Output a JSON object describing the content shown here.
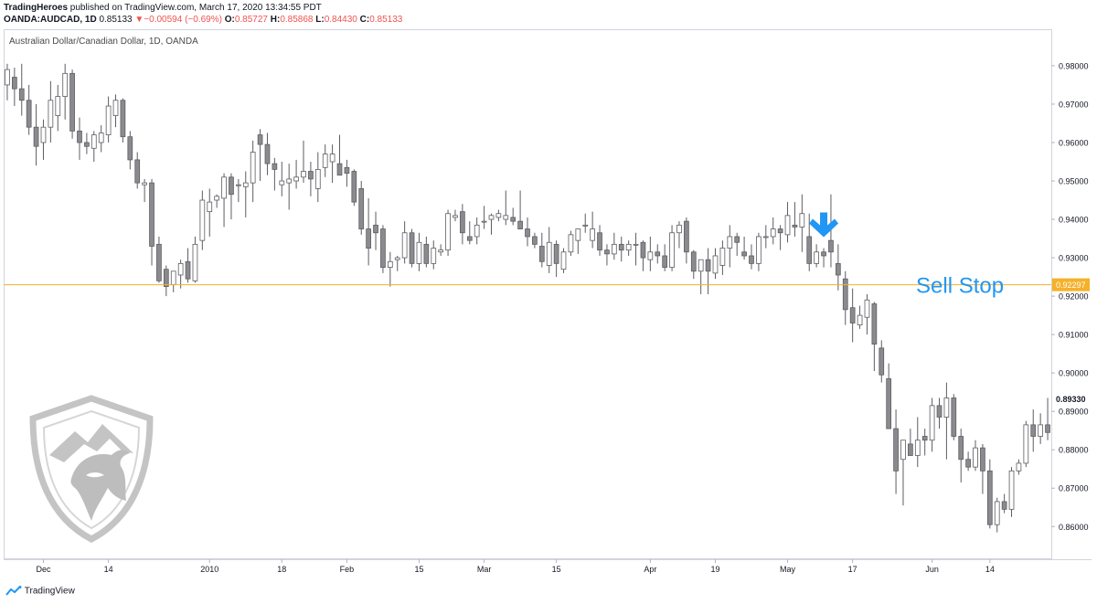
{
  "header": {
    "publisher": "TradingHeroes",
    "published_text": " published on TradingView.com, March 17, 2020 13:34:55 PDT",
    "symbol": "OANDA:AUDCAD, 1D",
    "last": "0.85133",
    "change_arrow": "▼",
    "change": "−0.00594 (−0.69%)",
    "o_label": "O:",
    "o_value": "0.85727",
    "h_label": "H:",
    "h_value": "0.85868",
    "l_label": "L:",
    "l_value": "0.84430",
    "c_label": "C:",
    "c_value": "0.85133"
  },
  "pane_title": "Australian Dollar/Canadian Dollar, 1D, OANDA",
  "footer": {
    "brand": "TradingView"
  },
  "colors": {
    "candle": "#8b8b8f",
    "candle_border": "#5d5d62",
    "level_line": "#f5b12a",
    "annotation": "#2196f3",
    "grid": "#e6e9ee",
    "axis_text": "#131722",
    "logo": "#bdbdbd"
  },
  "icons": {
    "annotation_arrow": "arrow-down-icon",
    "logo": "shield-bull-icon",
    "brand": "tradingview-icon"
  },
  "chart_data": {
    "type": "candlestick",
    "title": "Australian Dollar/Canadian Dollar, 1D, OANDA",
    "y_axis": {
      "position": "right",
      "range": [
        0.8515,
        0.9895
      ],
      "ticks": [
        "0.98000",
        "0.97000",
        "0.96000",
        "0.95000",
        "0.94000",
        "0.93000",
        "0.92000",
        "0.91000",
        "0.90000",
        "0.89000",
        "0.88000",
        "0.87000",
        "0.86000"
      ]
    },
    "x_axis": {
      "ticks": [
        "Dec",
        "14",
        "2010",
        "18",
        "Feb",
        "15",
        "Mar",
        "15",
        "Apr",
        "19",
        "May",
        "17",
        "Jun",
        "14"
      ],
      "tick_index": [
        5,
        14,
        28,
        38,
        47,
        57,
        66,
        76,
        89,
        98,
        108,
        117,
        128,
        136
      ]
    },
    "price_labels": [
      {
        "value": 0.92297,
        "text": "0.92297",
        "style": "level"
      },
      {
        "value": 0.8933,
        "text": "0.89330",
        "style": "plain"
      }
    ],
    "horizontal_line": {
      "value": 0.92297
    },
    "annotations": [
      {
        "text": "Sell Stop",
        "value": 0.92297
      },
      {
        "icon": "arrow-down",
        "index": 113,
        "value": 0.9375
      }
    ],
    "grid": false,
    "ohlc": [
      [
        0.975,
        0.9805,
        0.971,
        0.979
      ],
      [
        0.977,
        0.9795,
        0.9695,
        0.974
      ],
      [
        0.974,
        0.9805,
        0.967,
        0.971
      ],
      [
        0.971,
        0.975,
        0.962,
        0.964
      ],
      [
        0.964,
        0.97,
        0.954,
        0.959
      ],
      [
        0.96,
        0.966,
        0.9555,
        0.964
      ],
      [
        0.964,
        0.976,
        0.96,
        0.971
      ],
      [
        0.967,
        0.975,
        0.963,
        0.972
      ],
      [
        0.972,
        0.9805,
        0.966,
        0.978
      ],
      [
        0.978,
        0.979,
        0.961,
        0.963
      ],
      [
        0.963,
        0.9665,
        0.9555,
        0.96
      ],
      [
        0.96,
        0.9625,
        0.957,
        0.959
      ],
      [
        0.9585,
        0.963,
        0.955,
        0.962
      ],
      [
        0.96,
        0.9645,
        0.9575,
        0.9625
      ],
      [
        0.962,
        0.972,
        0.96,
        0.9695
      ],
      [
        0.967,
        0.9725,
        0.964,
        0.971
      ],
      [
        0.971,
        0.9715,
        0.96,
        0.9615
      ],
      [
        0.9615,
        0.963,
        0.953,
        0.9555
      ],
      [
        0.9555,
        0.9575,
        0.948,
        0.9495
      ],
      [
        0.949,
        0.9505,
        0.9445,
        0.9495
      ],
      [
        0.9495,
        0.9505,
        0.928,
        0.933
      ],
      [
        0.9335,
        0.9355,
        0.9235,
        0.924
      ],
      [
        0.927,
        0.928,
        0.92,
        0.9225
      ],
      [
        0.923,
        0.9265,
        0.921,
        0.9265
      ],
      [
        0.9255,
        0.9295,
        0.922,
        0.9285
      ],
      [
        0.929,
        0.9325,
        0.9235,
        0.9245
      ],
      [
        0.924,
        0.9355,
        0.9235,
        0.9335
      ],
      [
        0.9345,
        0.9475,
        0.932,
        0.945
      ],
      [
        0.942,
        0.948,
        0.9355,
        0.9445
      ],
      [
        0.945,
        0.9465,
        0.943,
        0.946
      ],
      [
        0.9455,
        0.952,
        0.938,
        0.951
      ],
      [
        0.951,
        0.952,
        0.94,
        0.9465
      ],
      [
        0.949,
        0.9505,
        0.9445,
        0.949
      ],
      [
        0.9485,
        0.9525,
        0.9405,
        0.9495
      ],
      [
        0.9495,
        0.9605,
        0.9445,
        0.9575
      ],
      [
        0.962,
        0.9635,
        0.95,
        0.9595
      ],
      [
        0.9595,
        0.9625,
        0.9515,
        0.9545
      ],
      [
        0.9545,
        0.956,
        0.9475,
        0.953
      ],
      [
        0.949,
        0.955,
        0.946,
        0.95
      ],
      [
        0.9495,
        0.9545,
        0.9425,
        0.9505
      ],
      [
        0.95,
        0.9555,
        0.948,
        0.951
      ],
      [
        0.951,
        0.9605,
        0.9495,
        0.9525
      ],
      [
        0.9525,
        0.955,
        0.946,
        0.9505
      ],
      [
        0.948,
        0.9575,
        0.9445,
        0.953
      ],
      [
        0.9535,
        0.9595,
        0.951,
        0.957
      ],
      [
        0.955,
        0.9595,
        0.9495,
        0.957
      ],
      [
        0.9545,
        0.962,
        0.952,
        0.9515
      ],
      [
        0.9535,
        0.9555,
        0.9485,
        0.952
      ],
      [
        0.9525,
        0.953,
        0.9435,
        0.9445
      ],
      [
        0.948,
        0.95,
        0.936,
        0.9375
      ],
      [
        0.9375,
        0.9455,
        0.928,
        0.9325
      ],
      [
        0.9385,
        0.942,
        0.932,
        0.9365
      ],
      [
        0.9375,
        0.9385,
        0.926,
        0.9275
      ],
      [
        0.9275,
        0.9315,
        0.9225,
        0.929
      ],
      [
        0.9295,
        0.9305,
        0.9265,
        0.93
      ],
      [
        0.93,
        0.9395,
        0.9285,
        0.9365
      ],
      [
        0.9365,
        0.9375,
        0.9275,
        0.9285
      ],
      [
        0.9285,
        0.9365,
        0.9265,
        0.934
      ],
      [
        0.9335,
        0.9355,
        0.9275,
        0.9285
      ],
      [
        0.9285,
        0.9345,
        0.927,
        0.9325
      ],
      [
        0.9315,
        0.9335,
        0.9305,
        0.932
      ],
      [
        0.932,
        0.9425,
        0.9305,
        0.9415
      ],
      [
        0.9405,
        0.9425,
        0.9395,
        0.941
      ],
      [
        0.942,
        0.944,
        0.9335,
        0.9365
      ],
      [
        0.9355,
        0.9395,
        0.9335,
        0.9345
      ],
      [
        0.9355,
        0.9405,
        0.9335,
        0.9385
      ],
      [
        0.9395,
        0.9435,
        0.9375,
        0.9395
      ],
      [
        0.94,
        0.9415,
        0.936,
        0.941
      ],
      [
        0.9405,
        0.9425,
        0.9395,
        0.9415
      ],
      [
        0.94,
        0.9475,
        0.9385,
        0.941
      ],
      [
        0.9405,
        0.943,
        0.9385,
        0.9395
      ],
      [
        0.9395,
        0.9475,
        0.9375,
        0.9375
      ],
      [
        0.9375,
        0.9405,
        0.933,
        0.9355
      ],
      [
        0.9355,
        0.9365,
        0.9325,
        0.9335
      ],
      [
        0.933,
        0.9365,
        0.9275,
        0.929
      ],
      [
        0.928,
        0.938,
        0.926,
        0.934
      ],
      [
        0.9335,
        0.9345,
        0.925,
        0.9285
      ],
      [
        0.927,
        0.9325,
        0.926,
        0.9315
      ],
      [
        0.9315,
        0.937,
        0.9305,
        0.936
      ],
      [
        0.9345,
        0.9375,
        0.931,
        0.9375
      ],
      [
        0.9385,
        0.9415,
        0.9365,
        0.9385
      ],
      [
        0.9345,
        0.942,
        0.9325,
        0.9375
      ],
      [
        0.9365,
        0.9385,
        0.9305,
        0.932
      ],
      [
        0.932,
        0.9335,
        0.928,
        0.931
      ],
      [
        0.931,
        0.9365,
        0.9295,
        0.9335
      ],
      [
        0.9335,
        0.9355,
        0.929,
        0.932
      ],
      [
        0.932,
        0.9345,
        0.9305,
        0.9335
      ],
      [
        0.9335,
        0.9365,
        0.928,
        0.9335
      ],
      [
        0.934,
        0.9345,
        0.9265,
        0.93
      ],
      [
        0.9295,
        0.9355,
        0.9265,
        0.9315
      ],
      [
        0.9315,
        0.9335,
        0.9285,
        0.9305
      ],
      [
        0.9305,
        0.9335,
        0.9265,
        0.9275
      ],
      [
        0.9275,
        0.9385,
        0.9265,
        0.9365
      ],
      [
        0.9365,
        0.9395,
        0.9325,
        0.9385
      ],
      [
        0.9395,
        0.9405,
        0.9285,
        0.9315
      ],
      [
        0.9315,
        0.932,
        0.9245,
        0.9265
      ],
      [
        0.9265,
        0.9295,
        0.9205,
        0.9295
      ],
      [
        0.9295,
        0.9325,
        0.9205,
        0.9265
      ],
      [
        0.926,
        0.9325,
        0.9245,
        0.9305
      ],
      [
        0.928,
        0.9345,
        0.9255,
        0.9325
      ],
      [
        0.9325,
        0.9385,
        0.9275,
        0.9355
      ],
      [
        0.9355,
        0.9365,
        0.9305,
        0.934
      ],
      [
        0.9315,
        0.9355,
        0.9295,
        0.9305
      ],
      [
        0.9305,
        0.9335,
        0.927,
        0.9285
      ],
      [
        0.9285,
        0.9365,
        0.9265,
        0.9355
      ],
      [
        0.9355,
        0.9385,
        0.9325,
        0.9355
      ],
      [
        0.9355,
        0.9405,
        0.9335,
        0.9375
      ],
      [
        0.9375,
        0.9385,
        0.932,
        0.9365
      ],
      [
        0.936,
        0.9445,
        0.934,
        0.941
      ],
      [
        0.9385,
        0.9445,
        0.9355,
        0.938
      ],
      [
        0.938,
        0.9465,
        0.9315,
        0.9415
      ],
      [
        0.9355,
        0.9415,
        0.9265,
        0.9285
      ],
      [
        0.9285,
        0.9335,
        0.9275,
        0.9315
      ],
      [
        0.9315,
        0.9325,
        0.9275,
        0.9305
      ],
      [
        0.9345,
        0.9465,
        0.9275,
        0.9315
      ],
      [
        0.9285,
        0.9335,
        0.9215,
        0.9255
      ],
      [
        0.9245,
        0.9265,
        0.9125,
        0.9165
      ],
      [
        0.917,
        0.922,
        0.908,
        0.913
      ],
      [
        0.9125,
        0.9175,
        0.9115,
        0.915
      ],
      [
        0.9145,
        0.9205,
        0.91,
        0.919
      ],
      [
        0.918,
        0.9185,
        0.9005,
        0.9075
      ],
      [
        0.9065,
        0.9085,
        0.8975,
        0.8995
      ],
      [
        0.8985,
        0.9025,
        0.8855,
        0.8855
      ],
      [
        0.8855,
        0.8905,
        0.8685,
        0.8745
      ],
      [
        0.8775,
        0.8825,
        0.8655,
        0.8825
      ],
      [
        0.8815,
        0.8855,
        0.8785,
        0.8785
      ],
      [
        0.8785,
        0.8885,
        0.8755,
        0.8825
      ],
      [
        0.8835,
        0.8855,
        0.8785,
        0.8825
      ],
      [
        0.8825,
        0.8935,
        0.8795,
        0.8915
      ],
      [
        0.8915,
        0.8935,
        0.8855,
        0.8885
      ],
      [
        0.8885,
        0.8975,
        0.8775,
        0.8935
      ],
      [
        0.8935,
        0.8945,
        0.8825,
        0.8835
      ],
      [
        0.8835,
        0.8855,
        0.8715,
        0.8775
      ],
      [
        0.8775,
        0.8795,
        0.8745,
        0.8755
      ],
      [
        0.8755,
        0.8825,
        0.8745,
        0.8805
      ],
      [
        0.8805,
        0.8815,
        0.8685,
        0.8745
      ],
      [
        0.8745,
        0.8775,
        0.8595,
        0.8605
      ],
      [
        0.8605,
        0.8675,
        0.8585,
        0.8665
      ],
      [
        0.8665,
        0.8685,
        0.8635,
        0.8645
      ],
      [
        0.8645,
        0.8755,
        0.8625,
        0.8745
      ],
      [
        0.8745,
        0.8775,
        0.8735,
        0.8765
      ],
      [
        0.8765,
        0.8875,
        0.8755,
        0.8865
      ],
      [
        0.8865,
        0.8905,
        0.8795,
        0.8835
      ],
      [
        0.8835,
        0.8895,
        0.8815,
        0.8865
      ],
      [
        0.8865,
        0.8935,
        0.8825,
        0.8845
      ]
    ]
  }
}
